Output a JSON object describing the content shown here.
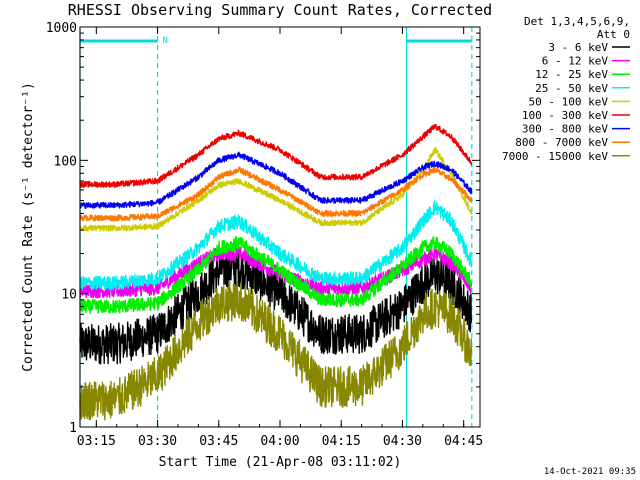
{
  "chart_data": {
    "type": "line",
    "title": "RHESSI Observing Summary Count Rates, Corrected",
    "xlabel": "Start Time (21-Apr-08 03:11:02)",
    "ylabel": "Corrected Count Rate (s⁻¹ detector⁻¹)",
    "y_scale": "log",
    "ylim": [
      1,
      1000
    ],
    "xlim": [
      "03:11",
      "04:49"
    ],
    "x_ticks": [
      "03:15",
      "03:30",
      "03:45",
      "04:00",
      "04:15",
      "04:30",
      "04:45"
    ],
    "y_ticks": [
      "1",
      "10",
      "100",
      "1000"
    ],
    "grid": false,
    "legend_position": "right",
    "legend_header": [
      "Det 1,3,4,5,6,9,",
      "Att 0"
    ],
    "annotations": [
      {
        "text": "N",
        "x": "03:30"
      }
    ],
    "night_intervals": [
      [
        "03:11",
        "03:30"
      ],
      [
        "04:31",
        "04:47"
      ]
    ],
    "x": [
      "03:11",
      "03:20",
      "03:30",
      "03:40",
      "03:45",
      "03:50",
      "04:00",
      "04:10",
      "04:20",
      "04:30",
      "04:35",
      "04:38",
      "04:42",
      "04:47"
    ],
    "series": [
      {
        "name": "3 - 6 keV",
        "color": "#000000",
        "values": [
          4.2,
          4.2,
          5,
          10,
          15,
          16,
          10,
          5,
          5,
          8,
          12,
          14,
          12,
          7
        ]
      },
      {
        "name": "6 - 12 keV",
        "color": "#ee00ee",
        "values": [
          10.5,
          10.5,
          11,
          17,
          20,
          20,
          14,
          11,
          11,
          15,
          18,
          20,
          17,
          11
        ]
      },
      {
        "name": "12 - 25 keV",
        "color": "#00ee00",
        "values": [
          8,
          8,
          8.5,
          15,
          22,
          24,
          15,
          9,
          9,
          16,
          22,
          24,
          20,
          12
        ]
      },
      {
        "name": "25 - 50 keV",
        "color": "#00eeee",
        "values": [
          12,
          12,
          13,
          22,
          32,
          35,
          20,
          13,
          13,
          22,
          35,
          45,
          35,
          17
        ]
      },
      {
        "name": "50 - 100 keV",
        "color": "#cccc00",
        "values": [
          31,
          31,
          32,
          50,
          65,
          70,
          50,
          34,
          34,
          55,
          85,
          120,
          80,
          40
        ]
      },
      {
        "name": "100 - 300 keV",
        "color": "#ee0000",
        "values": [
          66,
          66,
          70,
          110,
          145,
          160,
          120,
          75,
          75,
          110,
          150,
          180,
          150,
          95
        ]
      },
      {
        "name": "300 - 800 keV",
        "color": "#0000ee",
        "values": [
          46,
          46,
          48,
          75,
          100,
          110,
          80,
          50,
          50,
          70,
          88,
          95,
          85,
          58
        ]
      },
      {
        "name": "800 - 7000 keV",
        "color": "#ff7700",
        "values": [
          37,
          37,
          38,
          55,
          75,
          85,
          60,
          40,
          40,
          60,
          78,
          85,
          72,
          50
        ]
      },
      {
        "name": "7000 - 15000 keV",
        "color": "#888800",
        "values": [
          1.6,
          1.6,
          2.4,
          6,
          8.5,
          9,
          5,
          2,
          2,
          4,
          7,
          8,
          7,
          3.5
        ]
      }
    ]
  },
  "footer": {
    "timestamp": "14-Oct-2021 09:35"
  }
}
